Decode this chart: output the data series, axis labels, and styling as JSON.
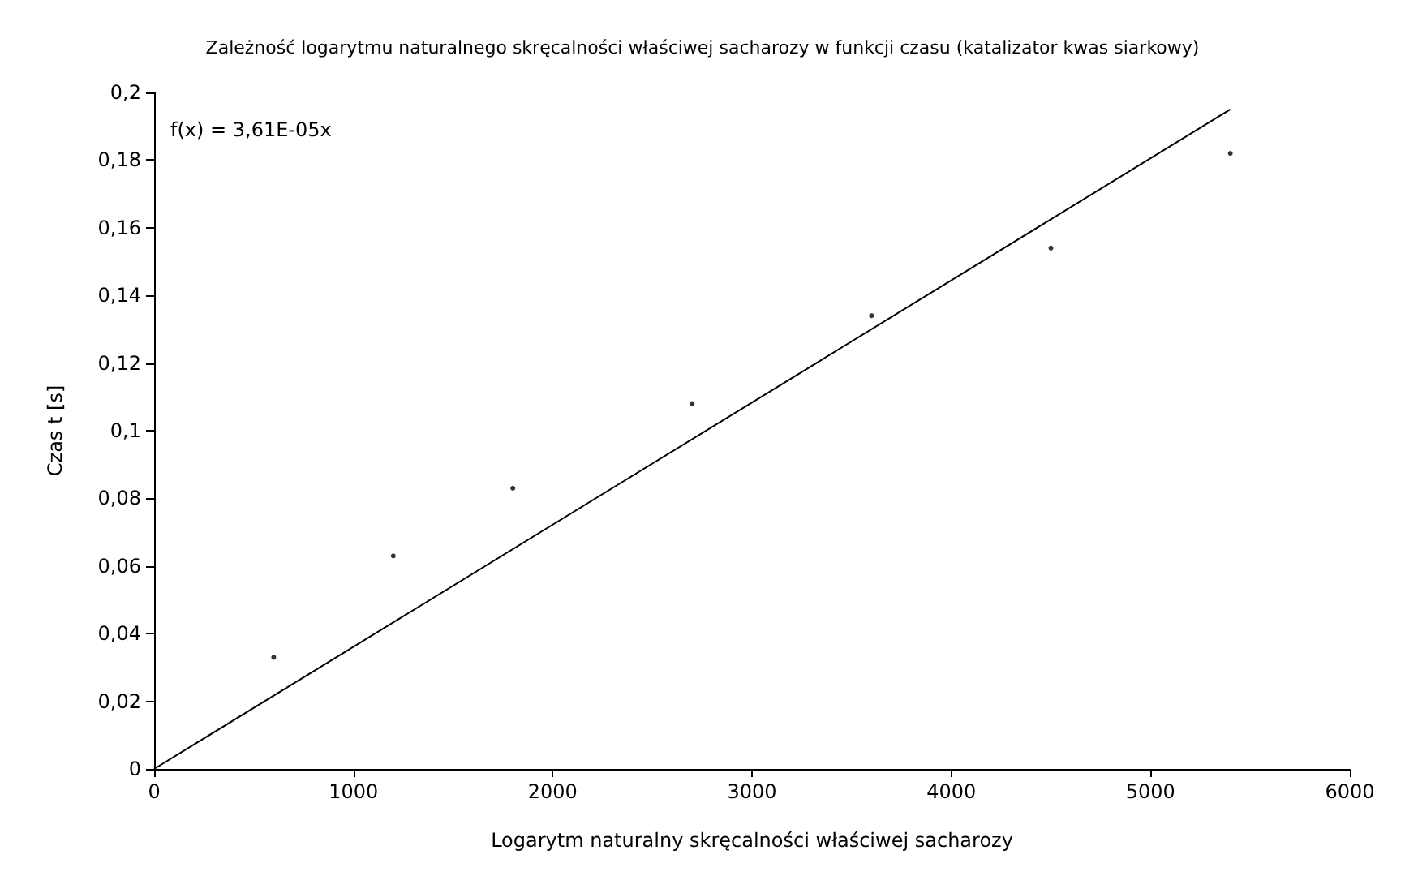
{
  "chart_data": {
    "type": "scatter",
    "title": "Zależność logarytmu naturalnego skręcalności właściwej sacharozy w funkcji czasu (katalizator kwas siarkowy)",
    "xlabel": "Logarytm naturalny skręcalności właściwej sacharozy",
    "ylabel": "Czas t [s]",
    "annotations": [
      "f(x) = 3,61E-05x"
    ],
    "series": [
      {
        "type": "scatter",
        "color": "#000000",
        "x": [
          600,
          1200,
          1800,
          2700,
          3600,
          4500,
          5400
        ],
        "values": [
          0.033,
          0.063,
          0.083,
          0.108,
          0.134,
          0.154,
          0.182
        ]
      },
      {
        "type": "line",
        "color": "#000000",
        "marker": "none",
        "x": [
          0,
          5400
        ],
        "values": [
          0,
          0.195
        ]
      }
    ],
    "marker": "circle",
    "grid": false,
    "xlim": [
      0,
      6000
    ],
    "xticks": [
      0,
      1000,
      2000,
      3000,
      4000,
      5000,
      6000
    ],
    "ylim": [
      0,
      0.2
    ],
    "yticks": [
      0,
      {
        "value": 0.02,
        "label": "0,02"
      },
      {
        "value": 0.04,
        "label": "0,04"
      },
      {
        "value": 0.06,
        "label": "0,06"
      },
      {
        "value": 0.08,
        "label": "0,08"
      },
      {
        "value": 0.1,
        "label": "0,1"
      },
      {
        "value": 0.12,
        "label": "0,12"
      },
      {
        "value": 0.14,
        "label": "0,14"
      },
      {
        "value": 0.16,
        "label": "0,16"
      },
      {
        "value": 0.18,
        "label": "0,18"
      },
      {
        "value": 0.2,
        "label": "0,2"
      }
    ]
  }
}
